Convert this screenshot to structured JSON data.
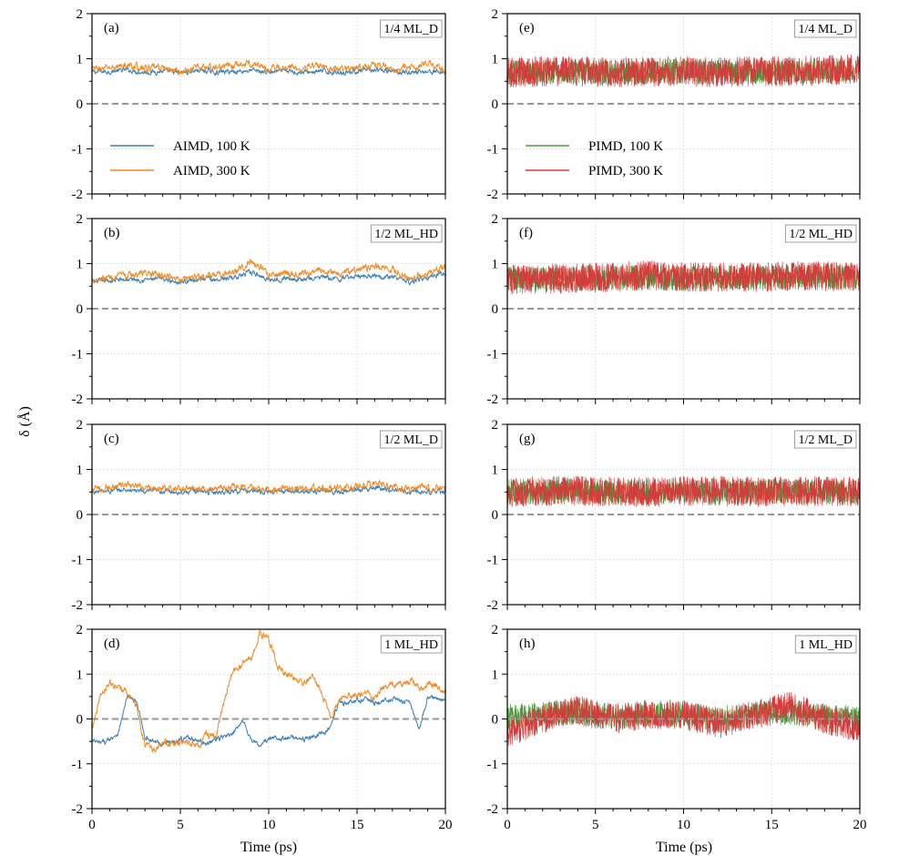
{
  "figure": {
    "ylabel": "δ (Å)",
    "xlabel": "Time (ps)"
  },
  "chart_data": [
    {
      "id": "a",
      "type": "line",
      "label": "(a)",
      "box": "1/4 ML_D",
      "method": "AIMD",
      "xlim": [
        0,
        20
      ],
      "ylim": [
        -2,
        2
      ],
      "xticks": [
        "0",
        "5",
        "10",
        "15",
        "20"
      ],
      "yticks": [
        "2",
        "1",
        "0",
        "-1",
        "-2"
      ],
      "reference_y": 0,
      "legend": {
        "visible": true,
        "placement": "lower-left"
      },
      "series": [
        {
          "name": "AIMD, 100 K",
          "color": "#3a7fb6",
          "x": [
            0,
            1,
            2,
            3,
            4,
            5,
            6,
            7,
            8,
            9,
            10,
            11,
            12,
            13,
            14,
            15,
            16,
            17,
            18,
            19,
            20
          ],
          "values": [
            0.7,
            0.72,
            0.75,
            0.7,
            0.72,
            0.68,
            0.75,
            0.7,
            0.72,
            0.74,
            0.7,
            0.72,
            0.7,
            0.72,
            0.7,
            0.72,
            0.74,
            0.72,
            0.7,
            0.72,
            0.7
          ]
        },
        {
          "name": "AIMD, 300 K",
          "color": "#f08a24",
          "x": [
            0,
            1,
            2,
            3,
            4,
            5,
            6,
            7,
            8,
            9,
            10,
            11,
            12,
            13,
            14,
            15,
            16,
            17,
            18,
            19,
            20
          ],
          "values": [
            0.75,
            0.8,
            0.85,
            0.78,
            0.8,
            0.7,
            0.82,
            0.8,
            0.85,
            0.9,
            0.78,
            0.82,
            0.8,
            0.85,
            0.75,
            0.82,
            0.85,
            0.78,
            0.8,
            0.9,
            0.72
          ]
        }
      ]
    },
    {
      "id": "b",
      "type": "line",
      "label": "(b)",
      "box": "1/2 ML_HD",
      "method": "AIMD",
      "xlim": [
        0,
        20
      ],
      "ylim": [
        -2,
        2
      ],
      "xticks": [
        "0",
        "5",
        "10",
        "15",
        "20"
      ],
      "yticks": [
        "2",
        "1",
        "0",
        "-1",
        "-2"
      ],
      "reference_y": 0,
      "series": [
        {
          "name": "AIMD, 100 K",
          "color": "#3a7fb6",
          "x": [
            0,
            1,
            2,
            3,
            4,
            5,
            6,
            7,
            8,
            9,
            10,
            11,
            12,
            13,
            14,
            15,
            16,
            17,
            18,
            19,
            20
          ],
          "values": [
            0.6,
            0.62,
            0.65,
            0.65,
            0.65,
            0.6,
            0.65,
            0.65,
            0.7,
            0.8,
            0.65,
            0.68,
            0.65,
            0.7,
            0.65,
            0.72,
            0.75,
            0.7,
            0.6,
            0.7,
            0.8
          ]
        },
        {
          "name": "AIMD, 300 K",
          "color": "#f08a24",
          "x": [
            0,
            1,
            2,
            3,
            4,
            5,
            6,
            7,
            8,
            9,
            10,
            11,
            12,
            13,
            14,
            15,
            16,
            17,
            18,
            19,
            20
          ],
          "values": [
            0.65,
            0.7,
            0.72,
            0.8,
            0.72,
            0.68,
            0.72,
            0.72,
            0.8,
            1.05,
            0.75,
            0.8,
            0.75,
            0.85,
            0.8,
            0.85,
            0.95,
            0.85,
            0.65,
            0.8,
            0.9
          ]
        }
      ]
    },
    {
      "id": "c",
      "type": "line",
      "label": "(c)",
      "box": "1/2 ML_D",
      "method": "AIMD",
      "xlim": [
        0,
        20
      ],
      "ylim": [
        -2,
        2
      ],
      "xticks": [
        "0",
        "5",
        "10",
        "15",
        "20"
      ],
      "yticks": [
        "2",
        "1",
        "0",
        "-1",
        "-2"
      ],
      "reference_y": 0,
      "series": [
        {
          "name": "AIMD, 100 K",
          "color": "#3a7fb6",
          "x": [
            0,
            1,
            2,
            3,
            4,
            5,
            6,
            7,
            8,
            9,
            10,
            11,
            12,
            13,
            14,
            15,
            16,
            17,
            18,
            19,
            20
          ],
          "values": [
            0.5,
            0.52,
            0.55,
            0.5,
            0.52,
            0.5,
            0.52,
            0.5,
            0.52,
            0.52,
            0.5,
            0.52,
            0.5,
            0.52,
            0.5,
            0.55,
            0.6,
            0.55,
            0.5,
            0.52,
            0.5
          ]
        },
        {
          "name": "AIMD, 300 K",
          "color": "#f08a24",
          "x": [
            0,
            1,
            2,
            3,
            4,
            5,
            6,
            7,
            8,
            9,
            10,
            11,
            12,
            13,
            14,
            15,
            16,
            17,
            18,
            19,
            20
          ],
          "values": [
            0.55,
            0.6,
            0.65,
            0.58,
            0.6,
            0.55,
            0.6,
            0.55,
            0.62,
            0.6,
            0.55,
            0.62,
            0.58,
            0.6,
            0.55,
            0.62,
            0.7,
            0.62,
            0.55,
            0.6,
            0.55
          ]
        }
      ]
    },
    {
      "id": "d",
      "type": "line",
      "label": "(d)",
      "box": "1 ML_HD",
      "method": "AIMD",
      "xlim": [
        0,
        20
      ],
      "ylim": [
        -2,
        2
      ],
      "xticks": [
        "0",
        "5",
        "10",
        "15",
        "20"
      ],
      "yticks": [
        "2",
        "1",
        "0",
        "-1",
        "-2"
      ],
      "reference_y": 0,
      "series": [
        {
          "name": "AIMD, 100 K",
          "color": "#3a7fb6",
          "x": [
            0,
            0.5,
            1,
            1.5,
            2,
            2.5,
            3,
            3.5,
            4,
            4.5,
            5,
            5.5,
            6,
            6.5,
            7,
            7.5,
            8,
            8.5,
            9,
            9.5,
            10,
            10.5,
            11,
            11.5,
            12,
            12.5,
            13,
            13.5,
            14,
            14.5,
            15,
            15.5,
            16,
            16.5,
            17,
            17.5,
            18,
            18.5,
            19,
            19.5,
            20
          ],
          "values": [
            -0.5,
            -0.55,
            -0.45,
            -0.3,
            0.5,
            0.4,
            -0.4,
            -0.5,
            -0.55,
            -0.5,
            -0.45,
            -0.4,
            -0.5,
            -0.55,
            -0.45,
            -0.4,
            -0.35,
            0.0,
            -0.45,
            -0.6,
            -0.45,
            -0.4,
            -0.45,
            -0.4,
            -0.45,
            -0.4,
            -0.35,
            -0.2,
            0.4,
            0.35,
            0.4,
            0.45,
            0.35,
            0.4,
            0.45,
            0.4,
            0.35,
            -0.25,
            0.5,
            0.45,
            0.4
          ]
        },
        {
          "name": "AIMD, 300 K",
          "color": "#f08a24",
          "x": [
            0,
            0.5,
            1,
            1.5,
            2,
            2.5,
            3,
            3.5,
            4,
            4.5,
            5,
            5.5,
            6,
            6.5,
            7,
            7.5,
            8,
            8.5,
            9,
            9.5,
            10,
            10.5,
            11,
            11.5,
            12,
            12.5,
            13,
            13.5,
            14,
            14.5,
            15,
            15.5,
            16,
            16.5,
            17,
            17.5,
            18,
            18.5,
            19,
            19.5,
            20
          ],
          "values": [
            -0.2,
            0.6,
            0.8,
            0.65,
            0.6,
            0.3,
            -0.6,
            -0.7,
            -0.55,
            -0.6,
            -0.5,
            -0.55,
            -0.6,
            -0.35,
            -0.4,
            0.4,
            1.1,
            1.2,
            1.35,
            1.9,
            1.8,
            1.2,
            1.05,
            0.9,
            0.8,
            0.9,
            0.6,
            0.0,
            0.45,
            0.5,
            0.55,
            0.6,
            0.5,
            0.7,
            0.8,
            0.75,
            0.85,
            0.7,
            0.8,
            0.75,
            0.6
          ]
        }
      ]
    },
    {
      "id": "e",
      "type": "line",
      "label": "(e)",
      "box": "1/4 ML_D",
      "method": "PIMD",
      "xlim": [
        0,
        20
      ],
      "ylim": [
        -2,
        2
      ],
      "xticks": [
        "0",
        "5",
        "10",
        "15",
        "20"
      ],
      "yticks": [
        "2",
        "1",
        "0",
        "-1",
        "-2"
      ],
      "reference_y": 0,
      "legend": {
        "visible": true,
        "placement": "lower-left"
      },
      "series": [
        {
          "name": "PIMD, 100 K",
          "color": "#4f9a3f",
          "x": [
            0,
            2,
            4,
            6,
            8,
            10,
            12,
            14,
            16,
            18,
            20
          ],
          "values": [
            0.7,
            0.7,
            0.72,
            0.7,
            0.7,
            0.72,
            0.7,
            0.72,
            0.7,
            0.74,
            0.75
          ]
        },
        {
          "name": "PIMD, 300 K",
          "color": "#d43c3c",
          "x": [
            0,
            2,
            4,
            6,
            8,
            10,
            12,
            14,
            16,
            18,
            20
          ],
          "values": [
            0.7,
            0.72,
            0.72,
            0.7,
            0.72,
            0.72,
            0.7,
            0.72,
            0.72,
            0.75,
            0.78
          ]
        }
      ]
    },
    {
      "id": "f",
      "type": "line",
      "label": "(f)",
      "box": "1/2 ML_HD",
      "method": "PIMD",
      "xlim": [
        0,
        20
      ],
      "ylim": [
        -2,
        2
      ],
      "xticks": [
        "0",
        "5",
        "10",
        "15",
        "20"
      ],
      "yticks": [
        "2",
        "1",
        "0",
        "-1",
        "-2"
      ],
      "reference_y": 0,
      "series": [
        {
          "name": "PIMD, 100 K",
          "color": "#4f9a3f",
          "x": [
            0,
            2,
            4,
            6,
            8,
            10,
            12,
            14,
            16,
            18,
            20
          ],
          "values": [
            0.65,
            0.65,
            0.68,
            0.68,
            0.7,
            0.68,
            0.68,
            0.68,
            0.7,
            0.7,
            0.68
          ]
        },
        {
          "name": "PIMD, 300 K",
          "color": "#d43c3c",
          "x": [
            0,
            2,
            4,
            6,
            8,
            10,
            12,
            14,
            16,
            18,
            20
          ],
          "values": [
            0.65,
            0.66,
            0.68,
            0.7,
            0.75,
            0.7,
            0.7,
            0.7,
            0.72,
            0.72,
            0.7
          ]
        }
      ]
    },
    {
      "id": "g",
      "type": "line",
      "label": "(g)",
      "box": "1/2 ML_D",
      "method": "PIMD",
      "xlim": [
        0,
        20
      ],
      "ylim": [
        -2,
        2
      ],
      "xticks": [
        "0",
        "5",
        "10",
        "15",
        "20"
      ],
      "yticks": [
        "2",
        "1",
        "0",
        "-1",
        "-2"
      ],
      "reference_y": 0,
      "series": [
        {
          "name": "PIMD, 100 K",
          "color": "#4f9a3f",
          "x": [
            0,
            2,
            4,
            6,
            8,
            10,
            12,
            14,
            16,
            18,
            20
          ],
          "values": [
            0.5,
            0.5,
            0.52,
            0.5,
            0.5,
            0.52,
            0.5,
            0.5,
            0.52,
            0.5,
            0.5
          ]
        },
        {
          "name": "PIMD, 300 K",
          "color": "#d43c3c",
          "x": [
            0,
            2,
            4,
            6,
            8,
            10,
            12,
            14,
            16,
            18,
            20
          ],
          "values": [
            0.5,
            0.52,
            0.52,
            0.52,
            0.5,
            0.52,
            0.52,
            0.5,
            0.52,
            0.52,
            0.5
          ]
        }
      ]
    },
    {
      "id": "h",
      "type": "line",
      "label": "(h)",
      "box": "1 ML_HD",
      "method": "PIMD",
      "xlim": [
        0,
        20
      ],
      "ylim": [
        -2,
        2
      ],
      "xticks": [
        "0",
        "5",
        "10",
        "15",
        "20"
      ],
      "yticks": [
        "2",
        "1",
        "0",
        "-1",
        "-2"
      ],
      "reference_y": 0,
      "series": [
        {
          "name": "PIMD, 100 K",
          "color": "#4f9a3f",
          "x": [
            0,
            2,
            4,
            6,
            8,
            10,
            12,
            14,
            16,
            18,
            20
          ],
          "values": [
            0.05,
            0.1,
            0.15,
            0.05,
            0.1,
            0.1,
            0.0,
            0.1,
            0.15,
            0.05,
            0.0
          ]
        },
        {
          "name": "PIMD, 300 K",
          "color": "#d43c3c",
          "x": [
            0,
            2,
            4,
            6,
            8,
            10,
            12,
            14,
            16,
            18,
            20
          ],
          "values": [
            -0.3,
            0.0,
            0.2,
            0.0,
            0.1,
            0.1,
            -0.1,
            0.1,
            0.3,
            0.0,
            -0.2
          ]
        }
      ]
    }
  ]
}
